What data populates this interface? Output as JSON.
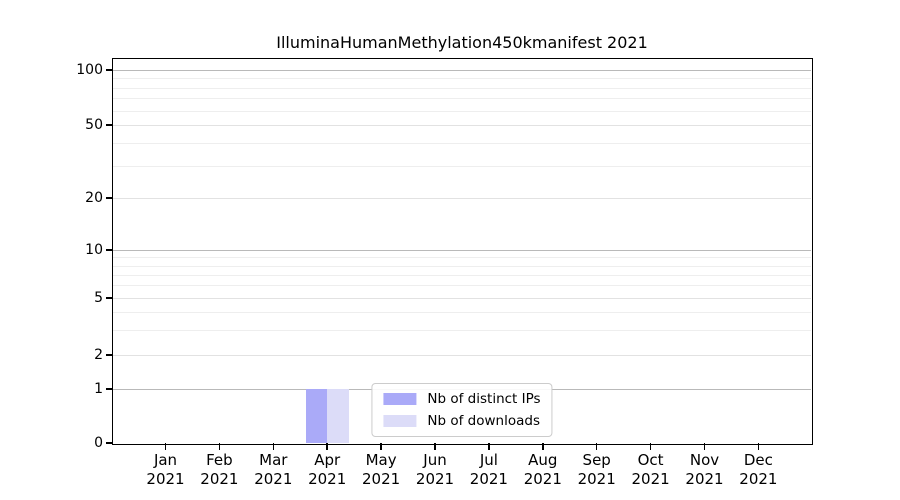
{
  "title": "IlluminaHumanMethylation450kmanifest 2021",
  "chart_data": {
    "type": "bar",
    "title": "IlluminaHumanMethylation450kmanifest 2021",
    "x_tick_months": [
      "Jan",
      "Feb",
      "Mar",
      "Apr",
      "May",
      "Jun",
      "Jul",
      "Aug",
      "Sep",
      "Oct",
      "Nov",
      "Dec"
    ],
    "x_tick_year": "2021",
    "categories": [
      "Jan 2021",
      "Feb 2021",
      "Mar 2021",
      "Apr 2021",
      "May 2021",
      "Jun 2021",
      "Jul 2021",
      "Aug 2021",
      "Sep 2021",
      "Oct 2021",
      "Nov 2021",
      "Dec 2021"
    ],
    "series": [
      {
        "name": "Nb of distinct IPs",
        "color": "#aaaaf8",
        "values": [
          0,
          0,
          0,
          1,
          0,
          0,
          0,
          0,
          0,
          0,
          0,
          0
        ]
      },
      {
        "name": "Nb of downloads",
        "color": "#dcdcf8",
        "values": [
          0,
          0,
          0,
          1,
          0,
          0,
          0,
          0,
          0,
          0,
          0,
          0
        ]
      }
    ],
    "y_axis": {
      "scale": "symlog-like",
      "ticks": [
        0,
        1,
        2,
        5,
        10,
        20,
        50,
        100
      ],
      "major_gridlines": [
        1,
        10,
        100
      ],
      "minor_gridlines": [
        3,
        4,
        6,
        7,
        8,
        9,
        30,
        40,
        60,
        70,
        80,
        90
      ],
      "ylim": [
        0,
        115
      ],
      "scale_anchors": [
        [
          0,
          1.0
        ],
        [
          1,
          0.8594
        ],
        [
          2,
          0.7708
        ],
        [
          5,
          0.6224
        ],
        [
          10,
          0.4974
        ],
        [
          20,
          0.362
        ],
        [
          50,
          0.1719
        ],
        [
          100,
          0.0286
        ]
      ]
    },
    "legend": {
      "position": "lower center",
      "items": [
        "Nb of distinct IPs",
        "Nb of downloads"
      ]
    },
    "grid": "horizontal only",
    "colors": {
      "axis": "#000000",
      "grid_major": "#b9b9b9",
      "grid_minor": "#eeeeee",
      "bar_distinct_ips": "#aaaaf8",
      "bar_downloads": "#dcdcf8",
      "text": "#000000"
    }
  }
}
